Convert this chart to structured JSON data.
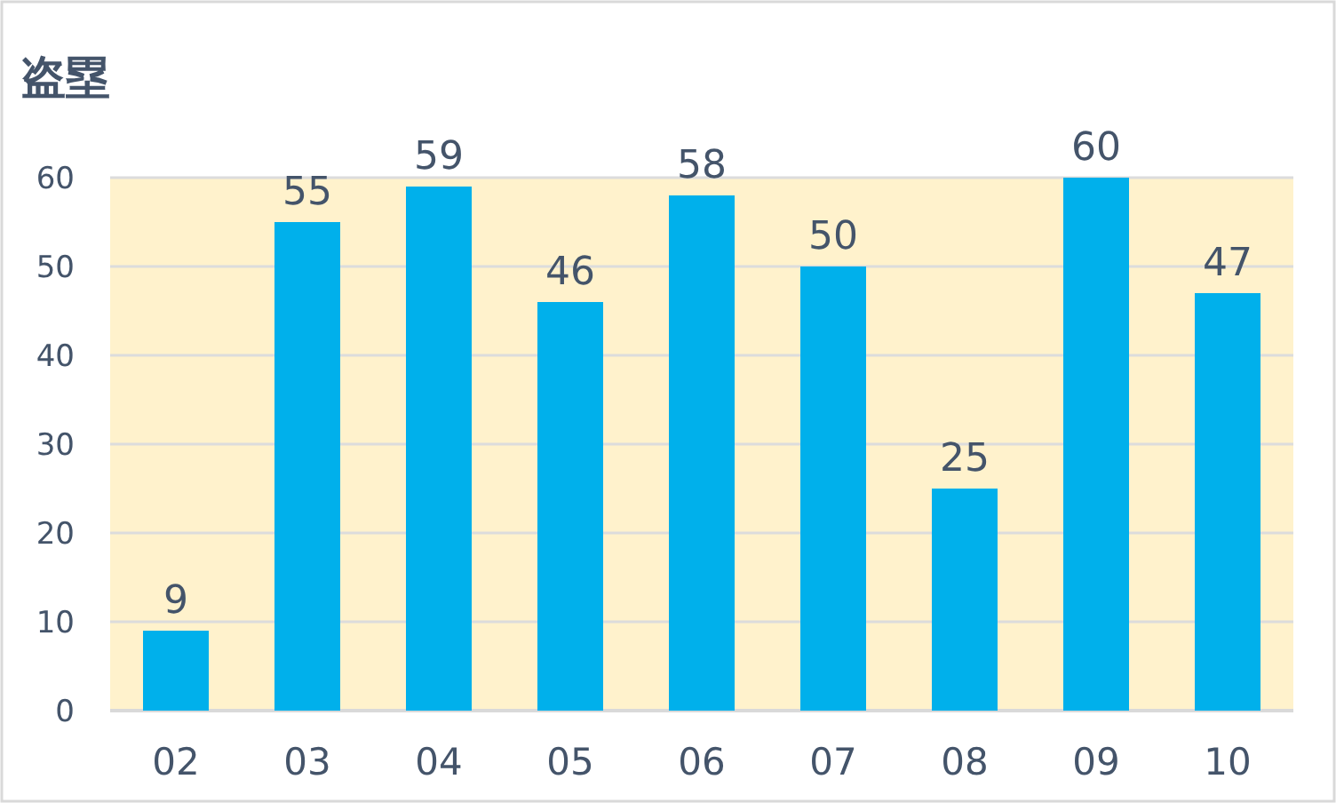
{
  "chart_data": {
    "type": "bar",
    "title": "盗塁",
    "categories": [
      "02",
      "03",
      "04",
      "05",
      "06",
      "07",
      "08",
      "09",
      "10"
    ],
    "series": [
      {
        "color": "#00b0eb",
        "values": [
          9,
          55,
          59,
          46,
          58,
          50,
          25,
          60,
          47
        ]
      }
    ],
    "ylim": [
      0,
      60
    ],
    "yticks": [
      0,
      10,
      20,
      30,
      40,
      50,
      60
    ],
    "grid": "y",
    "data_labels": true,
    "bands": [
      {
        "axis": "y",
        "from": 0,
        "to": 60,
        "color": "#fff2cc"
      }
    ]
  }
}
